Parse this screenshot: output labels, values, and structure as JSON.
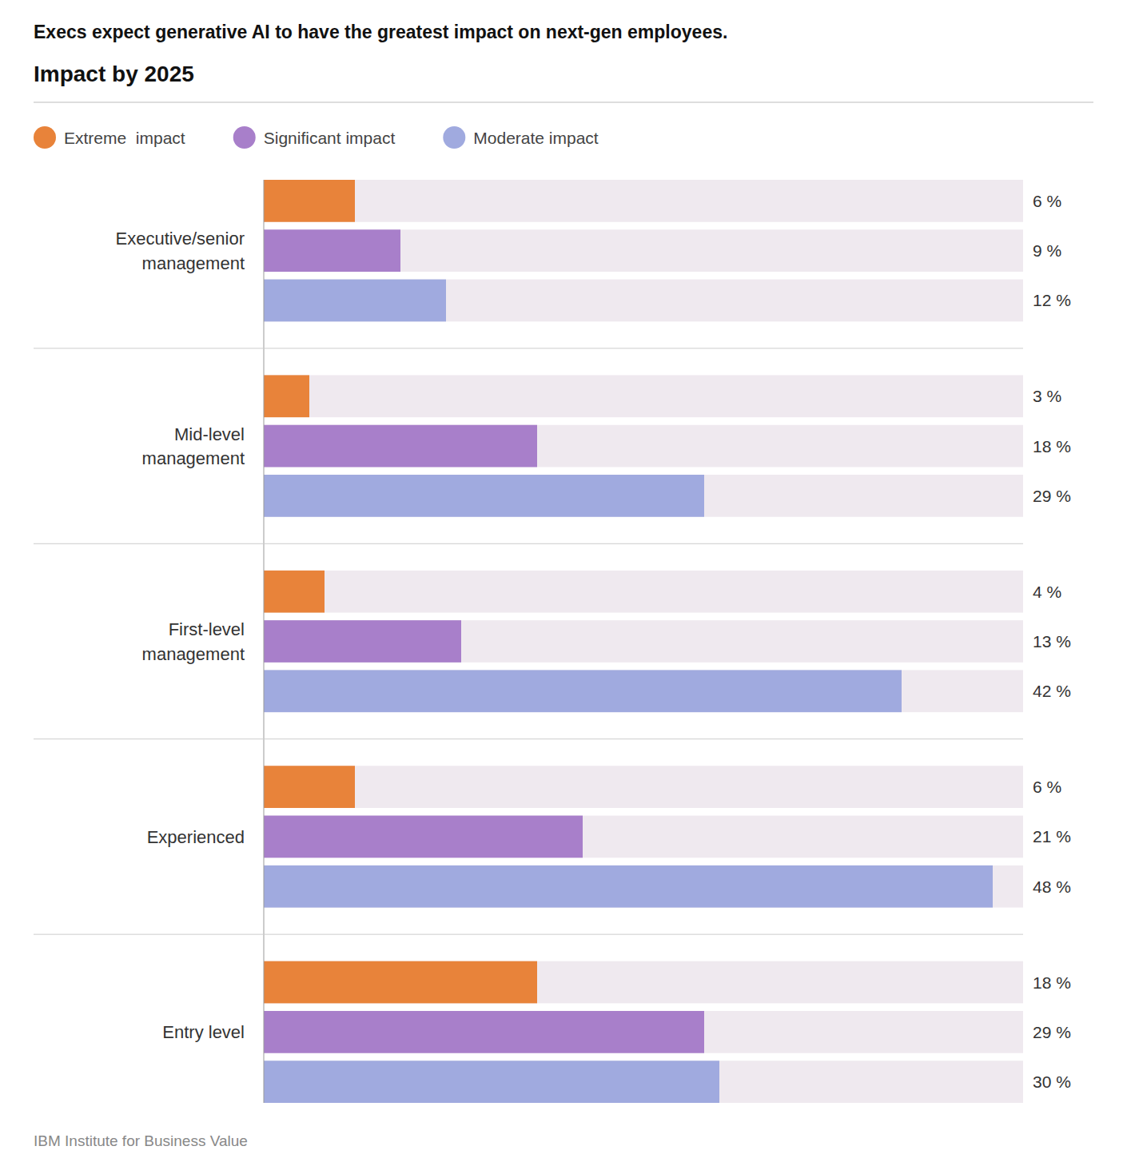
{
  "chart_data": {
    "type": "bar",
    "orientation": "horizontal",
    "title": "Execs expect generative AI to have the greatest impact on next-gen employees.",
    "subtitle": "Impact by 2025",
    "source": "IBM Institute for Business Value",
    "categories": [
      "Executive/senior\nmanagement",
      "Mid-level\nmanagement",
      "First-level\nmanagement",
      "Experienced",
      "Entry level"
    ],
    "series": [
      {
        "name": "Extreme  impact",
        "color": "#E8833A",
        "values": [
          6,
          3,
          4,
          6,
          18
        ],
        "value_labels": [
          "6 %",
          "3 %",
          "4 %",
          "6 %",
          "18 %"
        ]
      },
      {
        "name": "Significant impact",
        "color": "#A87FCA",
        "values": [
          9,
          18,
          13,
          21,
          29
        ],
        "value_labels": [
          "9 %",
          "18 %",
          "13 %",
          "21 %",
          "29 %"
        ]
      },
      {
        "name": "Moderate impact",
        "color": "#A0AADF",
        "values": [
          12,
          29,
          42,
          48,
          30
        ],
        "value_labels": [
          "12 %",
          "29 %",
          "42 %",
          "48 %",
          "30 %"
        ]
      }
    ],
    "xlim": [
      0,
      50
    ],
    "tick_labels": false,
    "grid": false,
    "legend": "top",
    "data_labels": true
  }
}
